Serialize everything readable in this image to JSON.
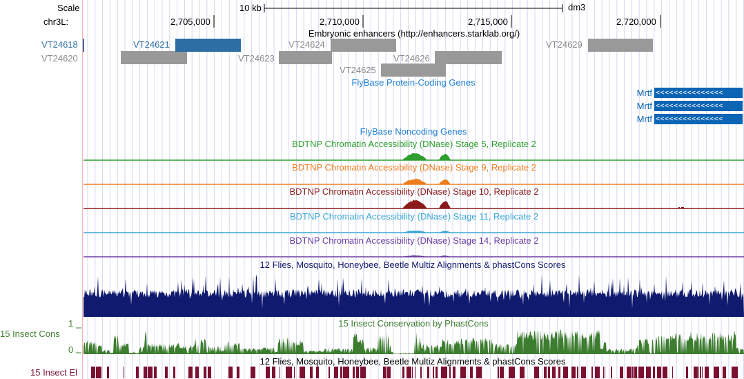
{
  "scale": {
    "label": "Scale",
    "bar_text": "10 kb",
    "assembly": "dm3"
  },
  "chrom": {
    "label": "chr3L:",
    "ticks": [
      "2,705,000",
      "2,710,000",
      "2,715,000",
      "2,720,000"
    ]
  },
  "tracks": {
    "enhancers": {
      "title": "Embryonic enhancers (http://enhancers.starklab.org/)",
      "items": [
        {
          "name": "VT24618",
          "highlight": true
        },
        {
          "name": "VT24620",
          "highlight": false
        },
        {
          "name": "VT24621",
          "highlight": true
        },
        {
          "name": "VT24623",
          "highlight": false
        },
        {
          "name": "VT24624",
          "highlight": false
        },
        {
          "name": "VT24625",
          "highlight": false
        },
        {
          "name": "VT24626",
          "highlight": false
        },
        {
          "name": "VT24629",
          "highlight": false
        }
      ]
    },
    "coding_genes": {
      "title": "FlyBase Protein-Coding Genes",
      "genes": [
        "Mrtf",
        "Mrtf",
        "Mrtf"
      ],
      "strand_glyph": "<<<<<<<<<<<<<<<"
    },
    "noncoding_genes": {
      "title": "FlyBase Noncoding Genes"
    },
    "dnase": [
      {
        "title": "BDTNP Chromatin Accessibility (DNase) Stage 5, Replicate 2",
        "color": "#2e9e2e"
      },
      {
        "title": "BDTNP Chromatin Accessibility (DNase) Stage 9, Replicate 2",
        "color": "#ee7d1e"
      },
      {
        "title": "BDTNP Chromatin Accessibility (DNase) Stage 10, Replicate 2",
        "color": "#8b1a1a"
      },
      {
        "title": "BDTNP Chromatin Accessibility (DNase) Stage 11, Replicate 2",
        "color": "#3aa6d8"
      },
      {
        "title": "BDTNP Chromatin Accessibility (DNase) Stage 14, Replicate 2",
        "color": "#6a3ea1"
      }
    ],
    "multiz": {
      "title": "12 Flies, Mosquito, Honeybee, Beetle Multiz Alignments & phastCons Scores",
      "color": "#101a6e"
    },
    "insect_cons": {
      "title": "15 Insect Conservation by PhastCons",
      "left_label": "15 Insect Cons",
      "axis_max": "1",
      "axis_min": "0",
      "color": "#3d7d2f"
    },
    "insect_el": {
      "title": "12 Flies, Mosquito, Honeybee, Beetle Multiz Alignments & phastCons Scores",
      "left_label": "15 Insect El",
      "color": "#7b1030"
    }
  },
  "colors": {
    "highlight_blue": "#2d6ea4",
    "gray_feature": "#999999",
    "gene_blue": "#0c64b4",
    "title_blue": "#1f7fd4",
    "gridline": "#d6d6f2"
  }
}
